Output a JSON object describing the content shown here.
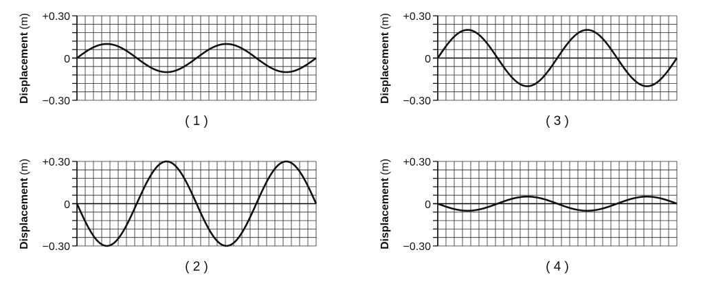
{
  "shared": {
    "ylabel": "Displacement",
    "yunit": "(m)",
    "yticks": [
      "+0.30",
      "0",
      "−0.30"
    ]
  },
  "colors": {
    "grid": "#222222",
    "curve": "#111111",
    "axis": "#000000"
  },
  "chart_data": [
    {
      "type": "line",
      "caption": "( 1 )",
      "ylabel": "Displacement (m)",
      "ylim": [
        -0.3,
        0.3
      ],
      "grid": true,
      "amplitude": 0.1,
      "cycles": 2,
      "phase": "starts at 0 going up",
      "x": [
        0,
        0.125,
        0.25,
        0.375,
        0.5,
        0.625,
        0.75,
        0.875,
        1
      ],
      "y": [
        0,
        0.1,
        0,
        -0.1,
        0,
        0.1,
        0,
        -0.1,
        0
      ]
    },
    {
      "type": "line",
      "caption": "( 2 )",
      "ylabel": "Displacement (m)",
      "ylim": [
        -0.3,
        0.3
      ],
      "grid": true,
      "amplitude": 0.3,
      "cycles": 2,
      "phase": "starts at 0 going down",
      "x": [
        0,
        0.125,
        0.25,
        0.375,
        0.5,
        0.625,
        0.75,
        0.875,
        1
      ],
      "y": [
        0,
        -0.3,
        0,
        0.3,
        0,
        -0.3,
        0,
        0.3,
        0
      ]
    },
    {
      "type": "line",
      "caption": "( 3 )",
      "ylabel": "Displacement (m)",
      "ylim": [
        -0.3,
        0.3
      ],
      "grid": true,
      "amplitude": 0.2,
      "cycles": 2,
      "phase": "starts at 0 going up",
      "x": [
        0,
        0.125,
        0.25,
        0.375,
        0.5,
        0.625,
        0.75,
        0.875,
        1
      ],
      "y": [
        0,
        0.2,
        0,
        -0.2,
        0,
        0.2,
        0,
        -0.2,
        0
      ]
    },
    {
      "type": "line",
      "caption": "( 4 )",
      "ylabel": "Displacement (m)",
      "ylim": [
        -0.3,
        0.3
      ],
      "grid": true,
      "amplitude": 0.05,
      "cycles": 2,
      "phase": "starts at 0 going down",
      "x": [
        0,
        0.125,
        0.25,
        0.375,
        0.5,
        0.625,
        0.75,
        0.875,
        1
      ],
      "y": [
        0,
        -0.05,
        0,
        0.05,
        0,
        -0.05,
        0,
        0.05,
        0
      ]
    }
  ]
}
